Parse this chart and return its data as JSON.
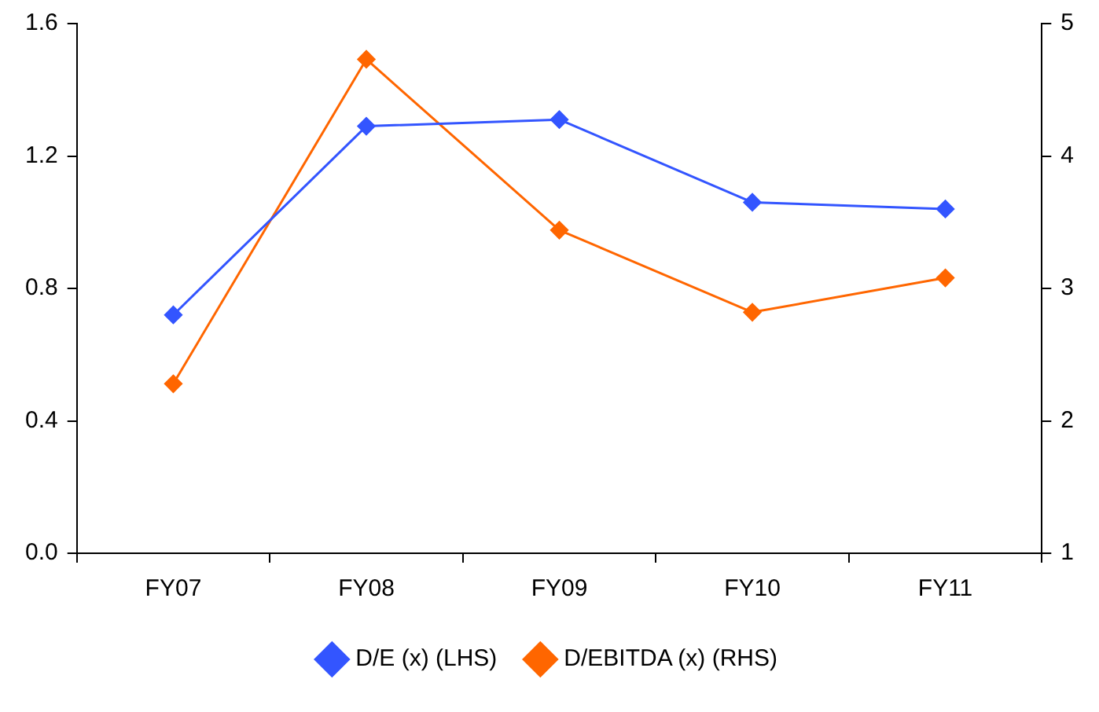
{
  "chart_data": {
    "type": "line",
    "categories": [
      "FY07",
      "FY08",
      "FY09",
      "FY10",
      "FY11"
    ],
    "series": [
      {
        "name": "D/E (x) (LHS)",
        "color": "#3355ff",
        "values": [
          0.72,
          1.29,
          1.31,
          1.06,
          1.04
        ]
      },
      {
        "name": "D/EBITDA (x) (RHS)",
        "color": "#ff6600",
        "axis": "y2",
        "values": [
          2.28,
          4.73,
          3.44,
          2.82,
          3.08
        ]
      }
    ],
    "ylim": [
      0,
      1.6
    ],
    "yticks": [
      {
        "value": 0,
        "label": "0.0"
      },
      0.4,
      0.8,
      1.2,
      1.6
    ],
    "y2lim": [
      1,
      5
    ],
    "y2ticks": [
      1,
      2,
      3,
      4,
      5
    ],
    "grid": false,
    "legend": "bottom",
    "marker": "diamond",
    "line_style": "solid"
  }
}
